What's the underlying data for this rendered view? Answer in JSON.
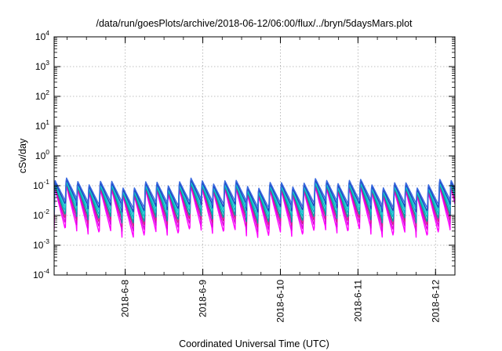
{
  "chart_data": {
    "type": "line",
    "title": "/data/run/goesPlots/archive/2018-06-12/06:00/flux/../bryn/5daysMars.plot",
    "xlabel": "Coordinated Universal Time (UTC)",
    "ylabel": "cSv/day",
    "y_scale": "log",
    "ylim": [
      0.0001,
      10000
    ],
    "xlim": [
      "2018-06-07 02:00",
      "2018-06-12 06:00"
    ],
    "x_ticks": [
      "2018-6-8",
      "2018-6-9",
      "2018-6-10",
      "2018-6-11",
      "2018-6-12"
    ],
    "y_ticks": [
      {
        "base": "10",
        "exp": "4"
      },
      {
        "base": "10",
        "exp": "3"
      },
      {
        "base": "10",
        "exp": "2"
      },
      {
        "base": "10",
        "exp": "1"
      },
      {
        "base": "10",
        "exp": "0"
      },
      {
        "base": "10",
        "exp": "-1"
      },
      {
        "base": "10",
        "exp": "-2"
      },
      {
        "base": "10",
        "exp": "-3"
      },
      {
        "base": "10",
        "exp": "-4"
      }
    ],
    "grid": true,
    "sawtooth_period_hours": 3.5,
    "series": [
      {
        "color": "#ff00ff",
        "peak": 0.075,
        "trough": 0.0028
      },
      {
        "color": "#dd00dd",
        "peak": 0.08,
        "trough": 0.0045
      },
      {
        "color": "#cc2288",
        "peak": 0.085,
        "trough": 0.0065
      },
      {
        "color": "#00a0a0",
        "peak": 0.095,
        "trough": 0.0085
      },
      {
        "color": "#00b8c8",
        "peak": 0.1,
        "trough": 0.012
      },
      {
        "color": "#20c8d0",
        "peak": 0.105,
        "trough": 0.016
      },
      {
        "color": "#1a3fc0",
        "peak": 0.12,
        "trough": 0.02
      },
      {
        "color": "#3a6ae0",
        "peak": 0.135,
        "trough": 0.026
      }
    ]
  }
}
